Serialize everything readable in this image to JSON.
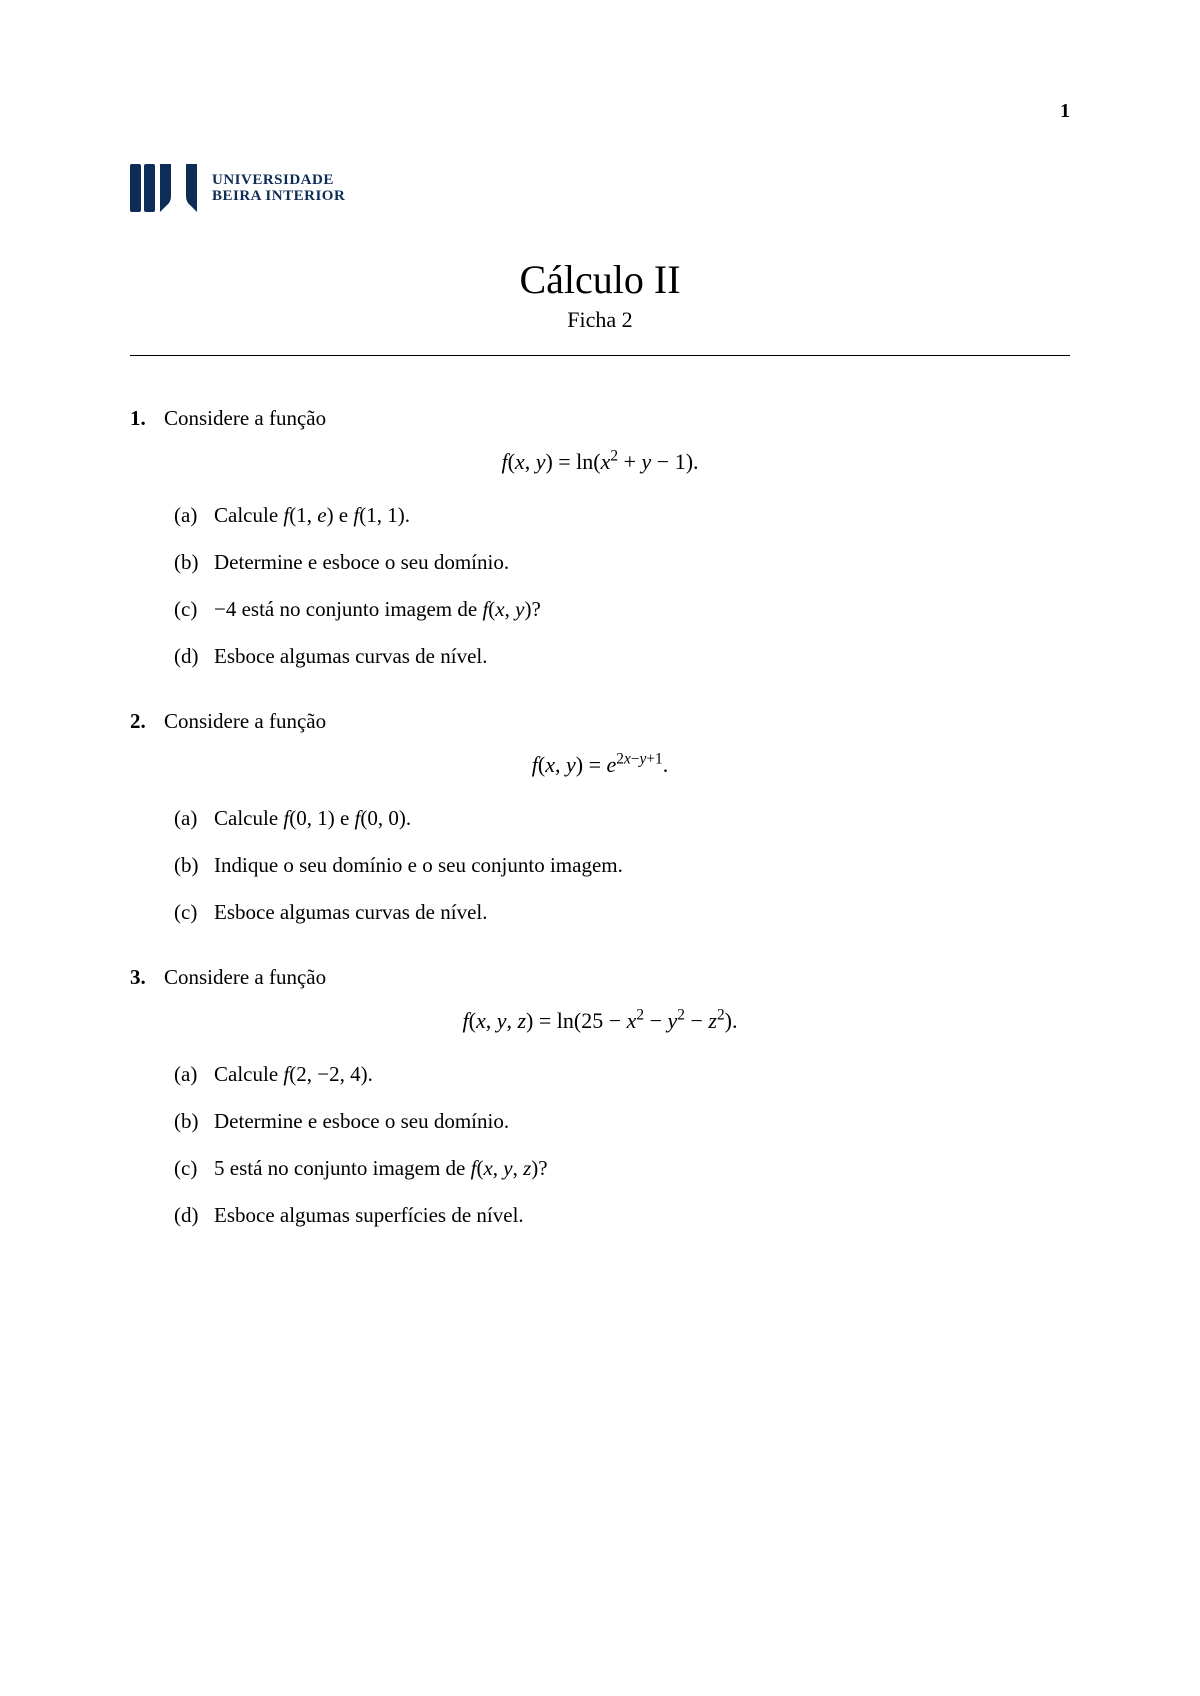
{
  "page_number": "1",
  "logo": {
    "color": "#0d2c56",
    "line1": "UNIVERSIDADE",
    "line2": "BEIRA INTERIOR"
  },
  "title": "Cálculo II",
  "subtitle": "Ficha 2",
  "problems": [
    {
      "num": "1.",
      "intro": "Considere a função",
      "equation_html": "<span class='math'>f</span>(<span class='math'>x</span>, <span class='math'>y</span>) = ln(<span class='math'>x</span><sup>2</sup> + <span class='math'>y</span> − 1).",
      "subs": [
        {
          "label": "(a)",
          "html": "Calcule <span class='math'>f</span>(1, <span class='math'>e</span>) e <span class='math'>f</span>(1, 1)."
        },
        {
          "label": "(b)",
          "html": "Determine e esboce o seu domínio."
        },
        {
          "label": "(c)",
          "html": "−4 está no conjunto imagem de <span class='math'>f</span>(<span class='math'>x</span>, <span class='math'>y</span>)?"
        },
        {
          "label": "(d)",
          "html": "Esboce algumas curvas de nível."
        }
      ]
    },
    {
      "num": "2.",
      "intro": "Considere a função",
      "equation_html": "<span class='math'>f</span>(<span class='math'>x</span>, <span class='math'>y</span>) = <span class='math'>e</span><sup>2<span class='math'>x</span>−<span class='math'>y</span>+1</sup>.",
      "subs": [
        {
          "label": "(a)",
          "html": "Calcule <span class='math'>f</span>(0, 1) e <span class='math'>f</span>(0, 0)."
        },
        {
          "label": "(b)",
          "html": "Indique o seu domínio e o seu conjunto imagem."
        },
        {
          "label": "(c)",
          "html": "Esboce algumas curvas de nível."
        }
      ]
    },
    {
      "num": "3.",
      "intro": "Considere a função",
      "equation_html": "<span class='math'>f</span>(<span class='math'>x</span>, <span class='math'>y</span>, <span class='math'>z</span>) = ln(25 − <span class='math'>x</span><sup>2</sup> − <span class='math'>y</span><sup>2</sup> − <span class='math'>z</span><sup>2</sup>).",
      "subs": [
        {
          "label": "(a)",
          "html": "Calcule <span class='math'>f</span>(2, −2, 4)."
        },
        {
          "label": "(b)",
          "html": "Determine e esboce o seu domínio."
        },
        {
          "label": "(c)",
          "html": "5 está no conjunto imagem de <span class='math'>f</span>(<span class='math'>x</span>, <span class='math'>y</span>, <span class='math'>z</span>)?"
        },
        {
          "label": "(d)",
          "html": "Esboce algumas superfícies de nível."
        }
      ]
    }
  ]
}
